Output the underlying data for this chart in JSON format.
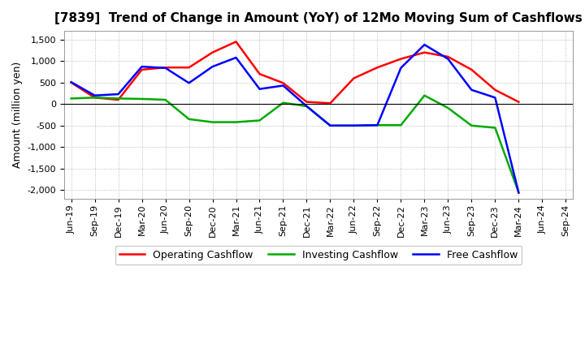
{
  "title": "[7839]  Trend of Change in Amount (YoY) of 12Mo Moving Sum of Cashflows",
  "ylabel": "Amount (million yen)",
  "xlabels": [
    "Jun-19",
    "Sep-19",
    "Dec-19",
    "Mar-20",
    "Jun-20",
    "Sep-20",
    "Dec-20",
    "Mar-21",
    "Jun-21",
    "Sep-21",
    "Dec-21",
    "Mar-22",
    "Jun-22",
    "Sep-22",
    "Dec-22",
    "Mar-23",
    "Jun-23",
    "Sep-23",
    "Dec-23",
    "Mar-24",
    "Jun-24",
    "Sep-24"
  ],
  "operating": [
    500,
    150,
    100,
    800,
    850,
    850,
    1200,
    1450,
    700,
    490,
    50,
    20,
    600,
    850,
    1050,
    1200,
    1100,
    800,
    330,
    50,
    null,
    null
  ],
  "investing": [
    130,
    150,
    130,
    120,
    100,
    -350,
    -420,
    -420,
    -380,
    30,
    -50,
    -500,
    -500,
    -490,
    -490,
    200,
    -90,
    -500,
    -550,
    -2050,
    null,
    null
  ],
  "free": [
    510,
    200,
    230,
    870,
    840,
    490,
    870,
    1080,
    350,
    430,
    -50,
    -500,
    -500,
    -490,
    840,
    1380,
    1050,
    330,
    150,
    -2060,
    null,
    null
  ],
  "operating_color": "#ff0000",
  "investing_color": "#00aa00",
  "free_color": "#0000ff",
  "ylim": [
    -2200,
    1700
  ],
  "yticks": [
    -2000,
    -1500,
    -1000,
    -500,
    0,
    500,
    1000,
    1500
  ],
  "background_color": "#ffffff",
  "grid_color": "#b0b0b0",
  "title_fontsize": 11,
  "axis_label_fontsize": 9,
  "tick_fontsize": 8,
  "legend_labels": [
    "Operating Cashflow",
    "Investing Cashflow",
    "Free Cashflow"
  ]
}
